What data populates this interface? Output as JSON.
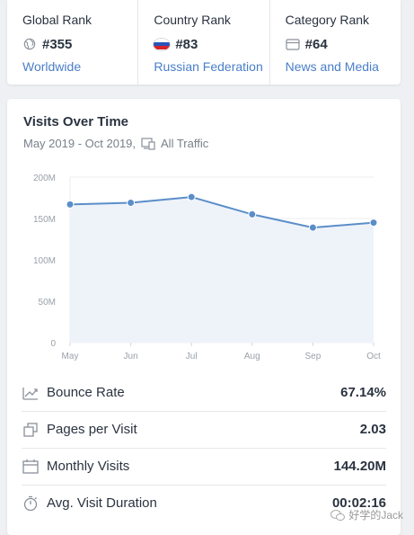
{
  "ranks": [
    {
      "title": "Global Rank",
      "value": "#355",
      "link": "Worldwide",
      "icon": "globe-icon"
    },
    {
      "title": "Country Rank",
      "value": "#83",
      "link": "Russian Federation",
      "icon": "russia-flag-icon"
    },
    {
      "title": "Category Rank",
      "value": "#64",
      "link": "News and Media",
      "icon": "folder-icon"
    }
  ],
  "visits": {
    "title": "Visits Over Time",
    "date_range": "May 2019 - Oct 2019,",
    "traffic": "All Traffic"
  },
  "chart_data": {
    "type": "area",
    "x": [
      "May",
      "Jun",
      "Jul",
      "Aug",
      "Sep",
      "Oct"
    ],
    "y_ticks": [
      "0",
      "50M",
      "100M",
      "150M",
      "200M"
    ],
    "ylim": [
      0,
      200
    ],
    "y_unit": "M",
    "series": [
      {
        "values": [
          167,
          169,
          176,
          155,
          139,
          145
        ]
      }
    ],
    "colors": {
      "line": "#5b8ec9",
      "fill": "#eef3fa",
      "grid": "#eceef1"
    }
  },
  "metrics": [
    {
      "label": "Bounce Rate",
      "value": "67.14%",
      "icon": "bounce-rate-icon"
    },
    {
      "label": "Pages per Visit",
      "value": "2.03",
      "icon": "pages-icon"
    },
    {
      "label": "Monthly Visits",
      "value": "144.20M",
      "icon": "calendar-icon"
    },
    {
      "label": "Avg. Visit Duration",
      "value": "00:02:16",
      "icon": "stopwatch-icon"
    }
  ],
  "watermark": "好学的Jack",
  "colors": {
    "link": "#4a7ec8",
    "text": "#2a3340",
    "muted": "#7a8089"
  }
}
